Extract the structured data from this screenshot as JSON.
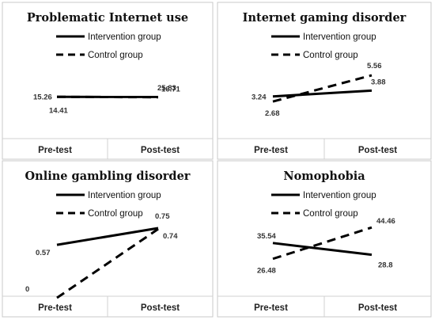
{
  "chart_data": [
    {
      "type": "line",
      "title": "Problematic Internet use",
      "categories": [
        "Pre-test",
        "Post-test"
      ],
      "series": [
        {
          "name": "Intervention group",
          "values": [
            15.26,
            16.71
          ],
          "labels": [
            "15.26",
            "16.71"
          ],
          "dash": "solid"
        },
        {
          "name": "Control group",
          "values": [
            14.41,
            25.83
          ],
          "labels": [
            "14.41",
            "25.83"
          ],
          "dash": "dashed"
        }
      ],
      "legend": "top"
    },
    {
      "type": "line",
      "title": "Internet gaming disorder",
      "categories": [
        "Pre-test",
        "Post-test"
      ],
      "series": [
        {
          "name": "Intervention group",
          "values": [
            3.24,
            3.88
          ],
          "labels": [
            "3.24",
            "3.88"
          ],
          "dash": "solid"
        },
        {
          "name": "Control group",
          "values": [
            2.68,
            5.56
          ],
          "labels": [
            "2.68",
            "5.56"
          ],
          "dash": "dashed"
        }
      ],
      "legend": "top"
    },
    {
      "type": "line",
      "title": "Online gambling disorder",
      "categories": [
        "Pre-test",
        "Post-test"
      ],
      "series": [
        {
          "name": "Intervention group",
          "values": [
            0.57,
            0.75
          ],
          "labels": [
            "0.57",
            "0.75"
          ],
          "dash": "solid"
        },
        {
          "name": "Control group",
          "values": [
            0,
            0.74
          ],
          "labels": [
            "0",
            "0.74"
          ],
          "dash": "dashed"
        }
      ],
      "legend": "top"
    },
    {
      "type": "line",
      "title": "Nomophobia",
      "categories": [
        "Pre-test",
        "Post-test"
      ],
      "series": [
        {
          "name": "Intervention group",
          "values": [
            35.54,
            28.8
          ],
          "labels": [
            "35.54",
            "28.8"
          ],
          "dash": "solid"
        },
        {
          "name": "Control group",
          "values": [
            26.48,
            44.46
          ],
          "labels": [
            "26.48",
            "44.46"
          ],
          "dash": "dashed"
        }
      ],
      "legend": "top"
    }
  ]
}
